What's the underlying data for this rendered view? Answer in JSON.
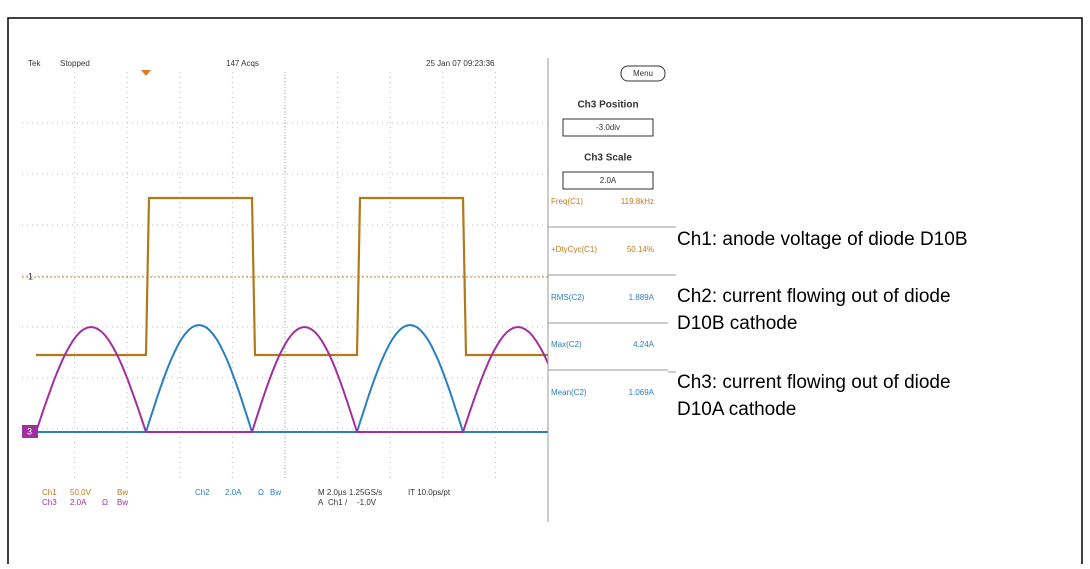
{
  "header": {
    "brand": "Tek",
    "status": "Stopped",
    "acquisitions": "147 Acqs",
    "datetime": "25 Jan 07 09:23:36"
  },
  "menu_button": "Menu",
  "side_panel": {
    "position_label": "Ch3 Position",
    "position_value": "-3.0div",
    "scale_label": "Ch3 Scale",
    "scale_value": "2.0A",
    "measurements": [
      {
        "label": "Freq(C1)",
        "value": "119.8kHz"
      },
      {
        "label": "+DtyCyc(C1)",
        "value": "50.14%"
      },
      {
        "label": "RMS(C2)",
        "value": "1.889A"
      },
      {
        "label": "Max(C2)",
        "value": "4.24A"
      },
      {
        "label": "Mean(C2)",
        "value": "1.069A"
      }
    ]
  },
  "markers": {
    "ch1": "1",
    "ch3": "3"
  },
  "footer": {
    "row1": [
      "Ch1",
      "50.0V",
      "Bw",
      "Ch2",
      "2.0A",
      "Ω",
      "Bw",
      "M 2.0µs 1.25GS/s",
      "IT 10.0ps/pt"
    ],
    "row2": [
      "Ch3",
      "2.0A",
      "Ω",
      "Bw",
      "A",
      "Ch1",
      "/",
      "-1.0V"
    ]
  },
  "annotations": [
    {
      "lines": [
        "Ch1: anode voltage of diode D10B"
      ]
    },
    {
      "lines": [
        "Ch2: current flowing out of diode",
        "D10B cathode"
      ]
    },
    {
      "lines": [
        "Ch3: current flowing out of diode",
        "D10A cathode"
      ]
    }
  ]
}
